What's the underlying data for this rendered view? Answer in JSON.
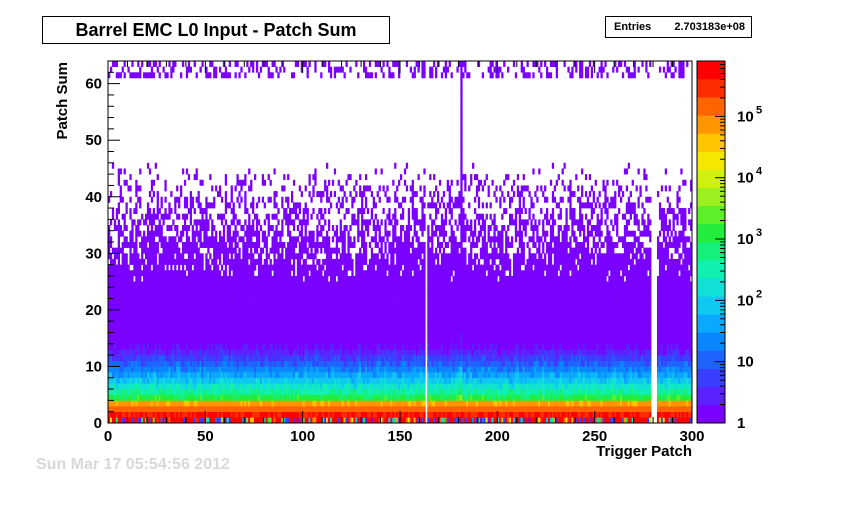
{
  "chart_data": {
    "type": "heatmap",
    "title": "Barrel EMC L0 Input - Patch Sum",
    "xlabel": "Trigger Patch",
    "ylabel": "Patch Sum",
    "xlim": [
      0,
      300
    ],
    "ylim": [
      0,
      64
    ],
    "x_ticks": [
      "0",
      "50",
      "100",
      "150",
      "200",
      "250",
      "300"
    ],
    "y_ticks": [
      "0",
      "10",
      "20",
      "30",
      "40",
      "50",
      "60"
    ],
    "z_scale": "log",
    "z_range": [
      1,
      800000
    ],
    "z_ticks": [
      "1",
      "10",
      "10",
      "10",
      "10",
      "10"
    ],
    "z_tick_exponents": [
      "",
      "",
      "2",
      "3",
      "4",
      "5"
    ],
    "stats": {
      "label": "Entries",
      "value": "2.703183e+08"
    },
    "palette": [
      "#7a00ff",
      "#5a22ff",
      "#3a3fff",
      "#1f63ff",
      "#0a86ff",
      "#0aa8ff",
      "#0ec8f2",
      "#10e0d6",
      "#10f0b0",
      "#14f07a",
      "#22ec3c",
      "#5cf028",
      "#9cf020",
      "#d0f010",
      "#f4e800",
      "#ffc400",
      "#ff9600",
      "#ff6400",
      "#ff2c00",
      "#ff0000"
    ],
    "dead_columns": [
      163,
      279,
      280,
      281
    ],
    "hot_columns": [
      181
    ]
  },
  "footer_ghost_text": "Sun Mar 17 05:54:56 2012"
}
